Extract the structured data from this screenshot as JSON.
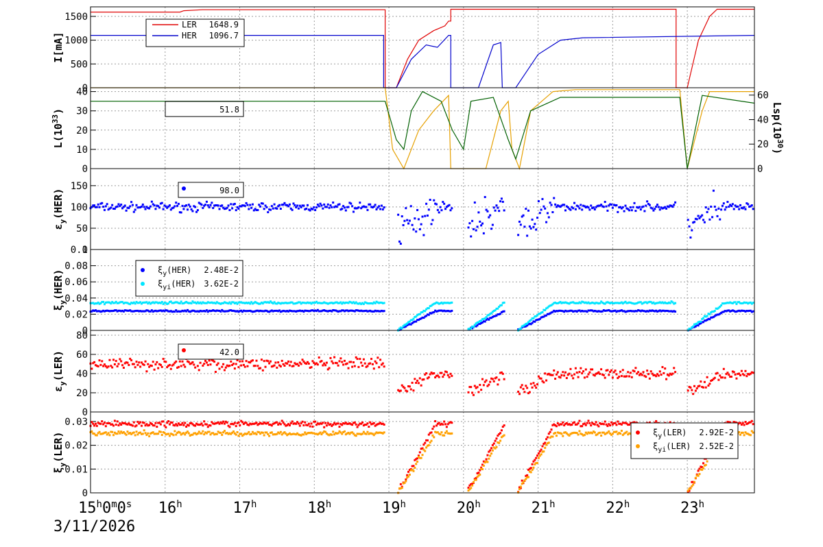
{
  "chart_data": [
    {
      "type": "line",
      "ylabel": "I[mA]",
      "ylim": [
        0,
        1700
      ],
      "yticks": [
        "0",
        "500",
        "1000",
        "1500"
      ],
      "legend": "top-left",
      "series": [
        {
          "name": "LER",
          "value": "1648.9",
          "color": "#e00000",
          "points": [
            [
              15,
              1590
            ],
            [
              16.2,
              1590
            ],
            [
              16.25,
              1620
            ],
            [
              16.5,
              1640
            ],
            [
              18.95,
              1640
            ],
            [
              18.95,
              0
            ],
            [
              19.1,
              0
            ],
            [
              19.25,
              600
            ],
            [
              19.4,
              1000
            ],
            [
              19.6,
              1200
            ],
            [
              19.75,
              1300
            ],
            [
              19.8,
              1400
            ],
            [
              19.83,
              1400
            ],
            [
              19.83,
              1650
            ],
            [
              22.85,
              1650
            ],
            [
              22.85,
              0
            ],
            [
              23.0,
              0
            ],
            [
              23.15,
              1000
            ],
            [
              23.3,
              1500
            ],
            [
              23.4,
              1650
            ],
            [
              23.9,
              1650
            ]
          ]
        },
        {
          "name": "HER",
          "value": "1096.7",
          "color": "#0000cc",
          "points": [
            [
              15,
              1100
            ],
            [
              18.93,
              1100
            ],
            [
              18.93,
              0
            ],
            [
              19.1,
              0
            ],
            [
              19.3,
              600
            ],
            [
              19.5,
              900
            ],
            [
              19.65,
              850
            ],
            [
              19.8,
              1100
            ],
            [
              19.83,
              1100
            ],
            [
              19.83,
              0
            ],
            [
              20.2,
              0
            ],
            [
              20.4,
              900
            ],
            [
              20.5,
              950
            ],
            [
              20.52,
              0
            ],
            [
              20.7,
              0
            ],
            [
              21.0,
              700
            ],
            [
              21.3,
              1000
            ],
            [
              21.6,
              1050
            ],
            [
              23.9,
              1100
            ]
          ]
        }
      ]
    },
    {
      "type": "line",
      "ylabel": "L(10^33)",
      "ylim": [
        0,
        42
      ],
      "yticks": [
        "0",
        "10",
        "20",
        "30",
        "40"
      ],
      "y2label": "Lsp(10^30)",
      "y2ticks": [
        "0",
        "20",
        "40",
        "60"
      ],
      "legend_value": "51.8",
      "series": [
        {
          "name": "",
          "color": "#e6a000",
          "points": [
            [
              15,
              42
            ],
            [
              18.95,
              42
            ],
            [
              19.05,
              10
            ],
            [
              19.2,
              0
            ],
            [
              19.4,
              20
            ],
            [
              19.6,
              30
            ],
            [
              19.8,
              38
            ],
            [
              19.83,
              0
            ],
            [
              20.3,
              0
            ],
            [
              20.5,
              30
            ],
            [
              20.6,
              35
            ],
            [
              20.65,
              10
            ],
            [
              20.75,
              0
            ],
            [
              20.9,
              30
            ],
            [
              21.2,
              40
            ],
            [
              21.5,
              41
            ],
            [
              22.9,
              41
            ],
            [
              23.0,
              0
            ],
            [
              23.2,
              30
            ],
            [
              23.3,
              40
            ],
            [
              23.9,
              40
            ]
          ]
        },
        {
          "name": "",
          "color": "#006000",
          "points": [
            [
              15,
              35
            ],
            [
              18.95,
              35
            ],
            [
              19.1,
              15
            ],
            [
              19.2,
              10
            ],
            [
              19.3,
              30
            ],
            [
              19.45,
              40
            ],
            [
              19.7,
              35
            ],
            [
              19.85,
              20
            ],
            [
              20.0,
              10
            ],
            [
              20.1,
              35
            ],
            [
              20.4,
              37
            ],
            [
              20.6,
              15
            ],
            [
              20.7,
              5
            ],
            [
              20.9,
              30
            ],
            [
              21.3,
              37
            ],
            [
              22.9,
              37
            ],
            [
              23.0,
              0
            ],
            [
              23.2,
              38
            ],
            [
              23.9,
              34
            ]
          ]
        }
      ]
    },
    {
      "type": "scatter",
      "ylabel": "εy(HER)",
      "ylim": [
        0,
        190
      ],
      "yticks": [
        "0",
        "50",
        "100",
        "150"
      ],
      "legend_value": "98.0",
      "series": [
        {
          "name": "",
          "color": "#0000ff",
          "base": 100,
          "spread": 12
        }
      ]
    },
    {
      "type": "scatter",
      "ylabel": "ξy(HER)",
      "ylim": [
        0,
        0.1
      ],
      "yticks": [
        "0",
        "0.02",
        "0.04",
        "0.06",
        "0.08",
        "0.1"
      ],
      "legend": "top-left",
      "series": [
        {
          "name": "ξy(HER)",
          "value": "2.48E-2",
          "color": "#0000ff",
          "base": 0.024
        },
        {
          "name": "ξyi(HER)",
          "value": "3.62E-2",
          "color": "#00e5ff",
          "base": 0.034
        }
      ]
    },
    {
      "type": "scatter",
      "ylabel": "εy(LER)",
      "ylim": [
        0,
        85
      ],
      "yticks": [
        "0",
        "20",
        "40",
        "60",
        "80"
      ],
      "legend_value": "42.0",
      "series": [
        {
          "name": "",
          "color": "#ff0000",
          "base": 50
        }
      ]
    },
    {
      "type": "scatter",
      "ylabel": "ξy(LER)",
      "ylim": [
        0,
        0.034
      ],
      "yticks": [
        "0",
        "0.01",
        "0.02",
        "0.03"
      ],
      "legend": "top-right",
      "series": [
        {
          "name": "ξy(LER)",
          "value": "2.92E-2",
          "color": "#ff0000",
          "base": 0.029
        },
        {
          "name": "ξyi(LER)",
          "value": "2.52E-2",
          "color": "#ffa000",
          "base": 0.025
        }
      ]
    }
  ],
  "x_axis": {
    "range": [
      15,
      23.9
    ],
    "ticks": [
      {
        "h": 15,
        "label": "15h0m0s"
      },
      {
        "h": 16,
        "label": "16h"
      },
      {
        "h": 17,
        "label": "17h"
      },
      {
        "h": 18,
        "label": "18h"
      },
      {
        "h": 19,
        "label": "19h"
      },
      {
        "h": 20,
        "label": "20h"
      },
      {
        "h": 21,
        "label": "21h"
      },
      {
        "h": 22,
        "label": "22h"
      },
      {
        "h": 23,
        "label": "23h"
      }
    ],
    "date": "3/11/2026"
  },
  "colors": {
    "grid": "#999999",
    "frame": "#000000"
  }
}
